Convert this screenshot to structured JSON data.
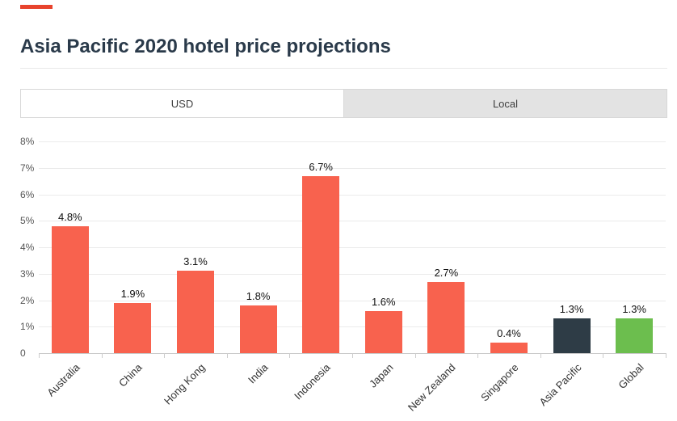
{
  "page": {
    "title": "Asia Pacific 2020 hotel price projections"
  },
  "tabs": [
    {
      "label": "USD",
      "active": true
    },
    {
      "label": "Local",
      "active": false
    }
  ],
  "colors": {
    "accent_red": "#e8432d",
    "title": "#2a3a4a",
    "bar_default": "#f8624e",
    "bar_dark": "#2e3c46",
    "bar_green": "#6cbe4e"
  },
  "chart_data": {
    "type": "bar",
    "title": "Asia Pacific 2020 hotel price projections",
    "categories": [
      "Australia",
      "China",
      "Hong Kong",
      "India",
      "Indonesia",
      "Japan",
      "New Zealand",
      "Singapore",
      "Asia Pacific",
      "Global"
    ],
    "values": [
      4.8,
      1.9,
      3.1,
      1.8,
      6.7,
      1.6,
      2.7,
      0.4,
      1.3,
      1.3
    ],
    "value_labels": [
      "4.8%",
      "1.9%",
      "3.1%",
      "1.8%",
      "6.7%",
      "1.6%",
      "2.7%",
      "0.4%",
      "1.3%",
      "1.3%"
    ],
    "bar_colors": [
      "#f8624e",
      "#f8624e",
      "#f8624e",
      "#f8624e",
      "#f8624e",
      "#f8624e",
      "#f8624e",
      "#f8624e",
      "#2e3c46",
      "#6cbe4e"
    ],
    "xlabel": "",
    "ylabel": "",
    "ylim": [
      0,
      8
    ],
    "y_ticks": [
      "8%",
      "7%",
      "6%",
      "5%",
      "4%",
      "3%",
      "2%",
      "1%",
      "0"
    ],
    "grid": true,
    "legend_position": "none"
  }
}
